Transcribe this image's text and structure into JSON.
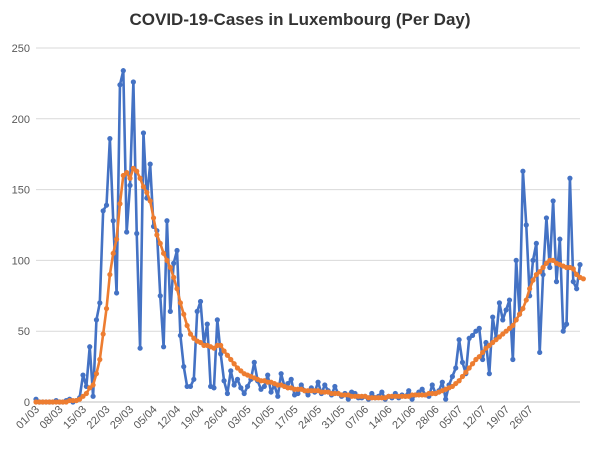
{
  "title": "COVID-19-Cases in Luxembourg (Per Day)",
  "chart_data": {
    "type": "line",
    "title": "COVID-19-Cases in Luxembourg (Per Day)",
    "xlabel": "",
    "ylabel": "",
    "ylim": [
      0,
      250
    ],
    "yticks": [
      0,
      50,
      100,
      150,
      200,
      250
    ],
    "grid": "horizontal",
    "legend": "none",
    "x_tick_labels": [
      "01/03",
      "08/03",
      "15/03",
      "22/03",
      "29/03",
      "05/04",
      "12/04",
      "19/04",
      "26/04",
      "03/05",
      "10/05",
      "17/05",
      "24/05",
      "31/05",
      "07/06",
      "14/06",
      "21/06",
      "28/06",
      "05/07",
      "12/07",
      "19/07",
      "26/07"
    ],
    "series": [
      {
        "color": "#4472C4",
        "marker": "circle",
        "values": [
          2,
          0,
          0,
          0,
          0,
          0,
          1,
          0,
          0,
          1,
          2,
          0,
          1,
          3,
          19,
          11,
          39,
          4,
          58,
          70,
          135,
          139,
          186,
          128,
          77,
          224,
          234,
          120,
          153,
          226,
          119,
          38,
          190,
          144,
          168,
          124,
          121,
          75,
          39,
          128,
          64,
          98,
          107,
          47,
          25,
          11,
          11,
          16,
          64,
          71,
          41,
          55,
          11,
          10,
          58,
          34,
          15,
          6,
          22,
          12,
          16,
          10,
          6,
          11,
          16,
          28,
          15,
          9,
          11,
          19,
          7,
          12,
          4,
          20,
          11,
          13,
          16,
          5,
          6,
          12,
          8,
          5,
          10,
          7,
          14,
          6,
          12,
          8,
          5,
          11,
          6,
          4,
          6,
          2,
          7,
          6,
          3,
          3,
          4,
          2,
          6,
          3,
          4,
          7,
          2,
          4,
          3,
          6,
          3,
          5,
          4,
          8,
          2,
          5,
          7,
          9,
          5,
          4,
          12,
          6,
          8,
          14,
          2,
          12,
          18,
          24,
          44,
          28,
          20,
          45,
          47,
          50,
          52,
          30,
          42,
          20,
          60,
          45,
          70,
          58,
          65,
          72,
          30,
          100,
          62,
          163,
          125,
          75,
          100,
          112,
          35,
          90,
          130,
          95,
          142,
          85,
          115,
          50,
          55,
          158,
          85,
          80,
          97
        ]
      },
      {
        "color": "#ED7D31",
        "marker": "circle",
        "values": [
          0,
          0,
          0,
          0,
          0,
          0,
          0,
          0,
          0,
          0,
          1,
          1,
          1,
          2,
          4,
          6,
          10,
          12,
          20,
          30,
          48,
          66,
          90,
          105,
          115,
          140,
          160,
          162,
          158,
          165,
          163,
          158,
          152,
          148,
          142,
          130,
          118,
          112,
          105,
          100,
          95,
          88,
          80,
          70,
          62,
          54,
          48,
          45,
          43,
          42,
          40,
          40,
          39,
          38,
          40,
          40,
          36,
          33,
          30,
          27,
          24,
          22,
          20,
          19,
          18,
          17,
          16,
          15,
          15,
          14,
          14,
          13,
          12,
          12,
          11,
          10,
          10,
          9,
          9,
          9,
          8,
          8,
          8,
          8,
          8,
          7,
          7,
          7,
          6,
          6,
          6,
          5,
          5,
          5,
          4,
          4,
          4,
          4,
          4,
          3,
          3,
          3,
          3,
          3,
          3,
          4,
          4,
          4,
          4,
          4,
          4,
          4,
          5,
          5,
          5,
          5,
          5,
          6,
          6,
          6,
          7,
          8,
          9,
          10,
          11,
          13,
          15,
          18,
          21,
          24,
          27,
          30,
          32,
          35,
          38,
          40,
          42,
          44,
          46,
          48,
          50,
          52,
          54,
          58,
          62,
          66,
          72,
          80,
          86,
          90,
          92,
          95,
          98,
          100,
          100,
          98,
          97,
          96,
          95,
          95,
          94,
          90,
          88,
          87
        ]
      }
    ]
  }
}
